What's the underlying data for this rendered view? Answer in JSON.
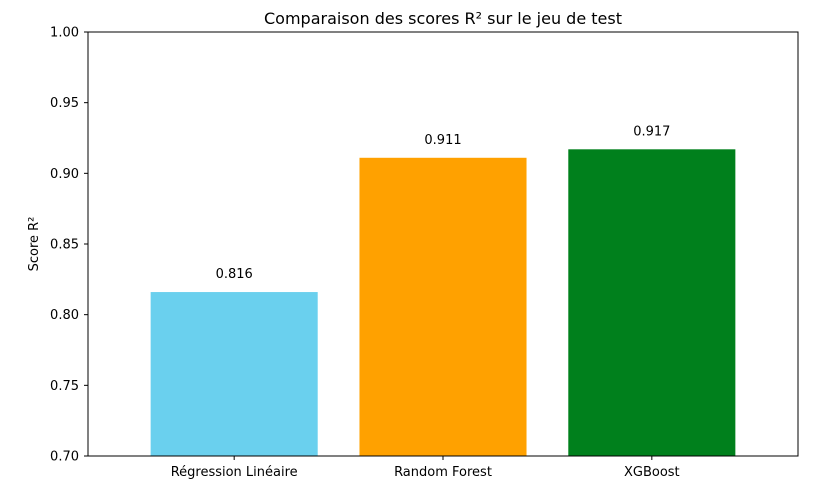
{
  "chart_data": {
    "type": "bar",
    "title": "Comparaison des scores R² sur le jeu de test",
    "xlabel": "",
    "ylabel": "Score R²",
    "categories": [
      "Régression Linéaire",
      "Random Forest",
      "XGBoost"
    ],
    "values": [
      0.816,
      0.911,
      0.917
    ],
    "value_labels": [
      "0.816",
      "0.911",
      "0.917"
    ],
    "colors": [
      "#6ad0ee",
      "#ffa100",
      "#00801c"
    ],
    "ylim": [
      0.7,
      1.0
    ],
    "yticks": [
      0.7,
      0.75,
      0.8,
      0.85,
      0.9,
      0.95,
      1.0
    ],
    "ytick_labels": [
      "0.70",
      "0.75",
      "0.80",
      "0.85",
      "0.90",
      "0.95",
      "1.00"
    ],
    "grid": false,
    "legend": false
  }
}
